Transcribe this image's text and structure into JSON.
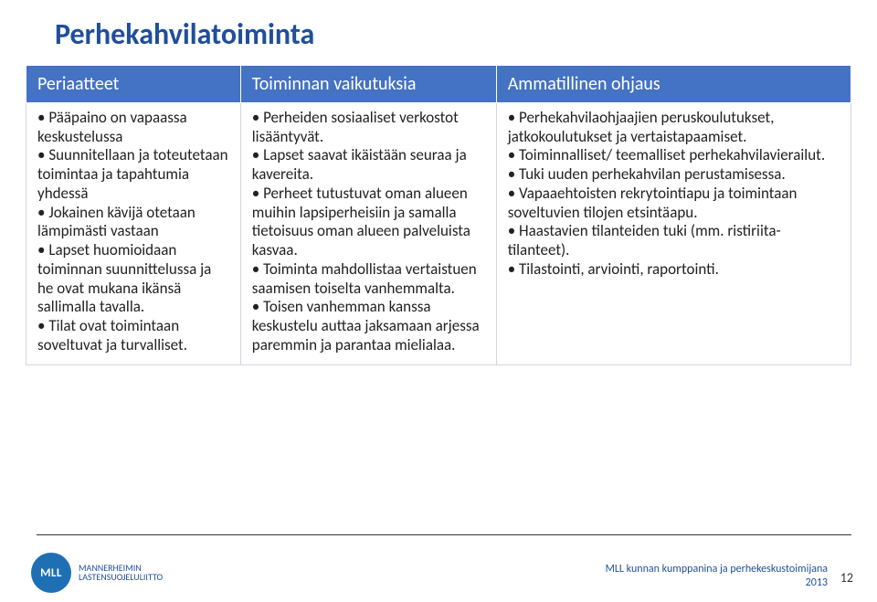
{
  "page": {
    "title": "Perhekahvilatoiminta",
    "title_fontsize": 32,
    "title_color": "#1f4e9c"
  },
  "table": {
    "header_bg": "#4472c4",
    "header_color": "#ffffff",
    "header_fontsize": 20,
    "body_fontsize": 17,
    "body_lineheight": 1.22,
    "border_color": "#cfd6e4",
    "col_widths_pct": [
      26,
      31,
      43
    ],
    "columns": [
      "Periaatteet",
      "Toiminnan vaikutuksia",
      "Ammatillinen ohjaus"
    ],
    "rows": [
      [
        [
          "Pääpaino on vapaassa keskustelussa",
          "Suunnitellaan ja toteutetaan toimintaa ja tapahtumia yhdessä",
          "Jokainen kävijä otetaan lämpimästi vastaan",
          "Lapset huomioidaan toiminnan suunnittelussa ja he ovat mukana ikänsä sallimalla tavalla.",
          "Tilat ovat toimintaan soveltuvat ja turvalliset."
        ],
        [
          "Perheiden sosiaaliset verkostot lisääntyvät.",
          "Lapset saavat ikäistään seuraa ja kavereita.",
          "Perheet tutustuvat oman alueen muihin lapsiperheisiin ja samalla tietoisuus oman alueen palveluista kasvaa.",
          "Toiminta mahdollistaa vertaistuen saamisen toiselta vanhemmalta.",
          "Toisen vanhemman kanssa keskustelu auttaa jaksamaan arjessa paremmin ja parantaa mielialaa."
        ],
        [
          "Perhekahvilaohjaajien peruskoulutukset, jatkokoulutukset ja vertaistapaamiset.",
          "Toiminnalliset/ teemalliset perhekahvilavierailut.",
          "Tuki uuden perhekahvilan perustamisessa.",
          "Vapaaehtoisten rekrytointiapu ja toimintaan soveltuvien tilojen etsintäapu.",
          "Haastavien tilanteiden tuki (mm. ristiriita-tilanteet).",
          "Tilastointi, arviointi, raportointi."
        ]
      ]
    ]
  },
  "footer": {
    "logo_bg": "#1f6fb5",
    "logo_text": "MLL",
    "org_line1": "MANNERHEIMIN",
    "org_line2": "LASTENSUOJELULIITTO",
    "org_color": "#1f4e9c",
    "org_fontsize": 10,
    "caption": "MLL kunnan kumppanina ja perhekeskustoimijana",
    "year": "2013",
    "caption_color": "#1f4e9c",
    "caption_fontsize": 12,
    "page_number": "12",
    "page_number_fontsize": 14
  }
}
